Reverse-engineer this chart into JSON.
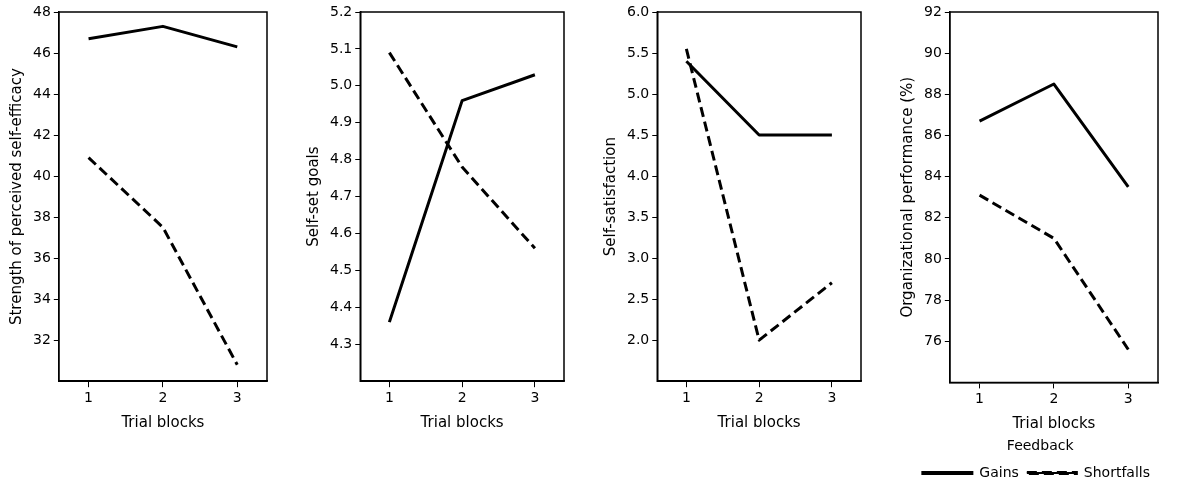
{
  "chart_data": [
    {
      "type": "line",
      "xlabel": "Trial blocks",
      "ylabel": "Strength of perceived self-efficacy",
      "x": [
        1,
        2,
        3
      ],
      "xlim": [
        0.6,
        3.4
      ],
      "xticks": [
        1,
        2,
        3
      ],
      "ylim": [
        30,
        48
      ],
      "yticks": [
        32,
        34,
        36,
        38,
        40,
        42,
        44,
        46,
        48
      ],
      "grid": false,
      "legend": false,
      "series": [
        {
          "color": "#000000",
          "line_style": "solid",
          "values": [
            46.7,
            47.3,
            46.3
          ]
        },
        {
          "color": "#000000",
          "line_style": "dashed",
          "values": [
            40.9,
            37.5,
            30.8
          ]
        }
      ]
    },
    {
      "type": "line",
      "xlabel": "Trial blocks",
      "ylabel": "Self-set goals",
      "x": [
        1,
        2,
        3
      ],
      "xlim": [
        0.6,
        3.4
      ],
      "xticks": [
        1,
        2,
        3
      ],
      "ylim": [
        4.2,
        5.2
      ],
      "yticks": [
        {
          "value": 4.3,
          "label": "4.3"
        },
        {
          "value": 4.4,
          "label": "4.4"
        },
        {
          "value": 4.5,
          "label": "4.5"
        },
        {
          "value": 4.6,
          "label": "4.6"
        },
        {
          "value": 4.7,
          "label": "4.7"
        },
        {
          "value": 4.8,
          "label": "4.8"
        },
        {
          "value": 4.9,
          "label": "4.9"
        },
        {
          "value": 5.0,
          "label": "5.0"
        },
        {
          "value": 5.1,
          "label": "5.1"
        },
        {
          "value": 5.2,
          "label": "5.2"
        }
      ],
      "grid": false,
      "legend": false,
      "series": [
        {
          "color": "#000000",
          "line_style": "solid",
          "values": [
            4.36,
            4.96,
            5.03
          ]
        },
        {
          "color": "#000000",
          "line_style": "dashed",
          "values": [
            5.09,
            4.78,
            4.56
          ]
        }
      ]
    },
    {
      "type": "line",
      "xlabel": "Trial blocks",
      "ylabel": "Self-satisfaction",
      "x": [
        1,
        2,
        3
      ],
      "xlim": [
        0.6,
        3.4
      ],
      "xticks": [
        1,
        2,
        3
      ],
      "ylim": [
        1.5,
        6
      ],
      "yticks": [
        {
          "value": 2,
          "label": "2.0"
        },
        {
          "value": 2.5,
          "label": "2.5"
        },
        {
          "value": 3,
          "label": "3.0"
        },
        {
          "value": 3.5,
          "label": "3.5"
        },
        {
          "value": 4,
          "label": "4.0"
        },
        {
          "value": 4.5,
          "label": "4.5"
        },
        {
          "value": 5,
          "label": "5.0"
        },
        {
          "value": 5.5,
          "label": "5.5"
        },
        {
          "value": 6,
          "label": "6.0"
        }
      ],
      "grid": false,
      "legend": false,
      "series": [
        {
          "color": "#000000",
          "line_style": "solid",
          "values": [
            5.4,
            4.5,
            4.5
          ]
        },
        {
          "color": "#000000",
          "line_style": "dashed",
          "values": [
            5.55,
            2.0,
            2.7
          ]
        }
      ]
    },
    {
      "type": "line",
      "xlabel": "Trial blocks",
      "ylabel": "Organizational performance (%)",
      "x": [
        1,
        2,
        3
      ],
      "xlim": [
        0.6,
        3.4
      ],
      "xticks": [
        1,
        2,
        3
      ],
      "ylim": [
        74,
        92
      ],
      "yticks": [
        76,
        78,
        80,
        82,
        84,
        86,
        88,
        90,
        92
      ],
      "grid": false,
      "legend": "bottom",
      "legend_title": "Feedback",
      "series": [
        {
          "name": "Gains",
          "color": "#000000",
          "line_style": "solid",
          "values": [
            86.7,
            88.5,
            83.5
          ]
        },
        {
          "name": "Shortfalls",
          "color": "#000000",
          "line_style": "dashed",
          "values": [
            83.1,
            81.0,
            75.6
          ]
        }
      ]
    }
  ]
}
